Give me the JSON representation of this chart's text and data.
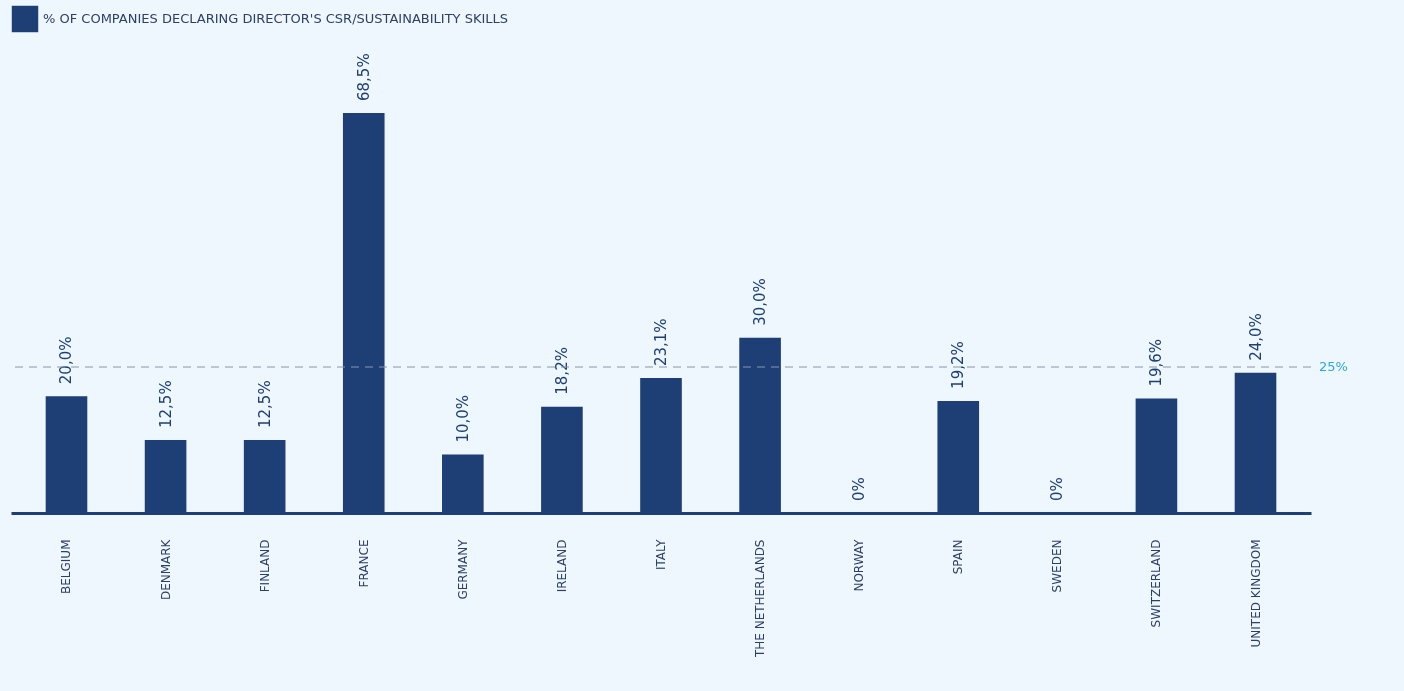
{
  "chart_data": {
    "type": "bar",
    "categories": [
      "BELGIUM",
      "DENMARK",
      "FINLAND",
      "FRANCE",
      "GERMANY",
      "IRELAND",
      "ITALY",
      "THE NETHERLANDS",
      "NORWAY",
      "SPAIN",
      "SWEDEN",
      "SWITZERLAND",
      "UNITED KINGDOM"
    ],
    "series": [
      {
        "name": "% OF COMPANIES DECLARING DIRECTOR'S CSR/SUSTAINABILITY SKILLS",
        "color": "#1d3f75",
        "values": [
          20.0,
          12.5,
          12.5,
          68.5,
          10.0,
          18.2,
          23.1,
          30.0,
          0,
          19.2,
          0,
          19.6,
          24.0
        ],
        "value_labels": [
          "20,0%",
          "12,5%",
          "12,5%",
          "68,5%",
          "10,0%",
          "18,2%",
          "23,1%",
          "30,0%",
          "0%",
          "19,2%",
          "0%",
          "19,6%",
          "24,0%"
        ]
      }
    ],
    "ref_lines": [
      {
        "axis": "y",
        "value": 25,
        "label": "25%",
        "color": "#8a96a8",
        "line_style": "dashed"
      }
    ],
    "legend": "top",
    "grid": false
  }
}
